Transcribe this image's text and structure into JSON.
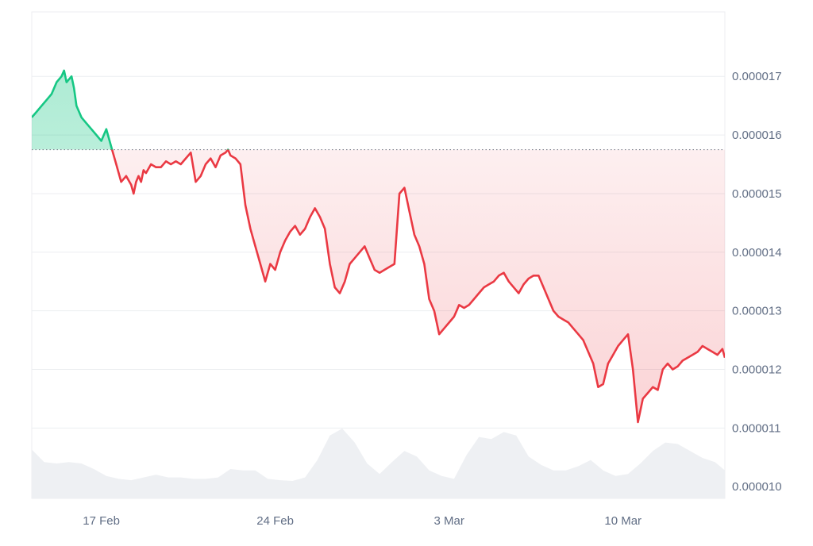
{
  "chart_data": {
    "type": "line",
    "title": "",
    "xlabel": "",
    "ylabel": "",
    "baseline": 1.575e-05,
    "ylim": [
      9.8e-06,
      1.81e-05
    ],
    "y_ticks": [
      "0.000017",
      "0.000016",
      "0.000015",
      "0.000014",
      "0.000013",
      "0.000012",
      "0.000011",
      "0.000010"
    ],
    "y_tick_values": [
      1.7e-05,
      1.6e-05,
      1.5e-05,
      1.4e-05,
      1.3e-05,
      1.2e-05,
      1.1e-05,
      1e-05
    ],
    "x_ticks": [
      "17 Feb",
      "24 Feb",
      "3 Mar",
      "10 Mar"
    ],
    "x_tick_days": [
      2.8,
      9.8,
      16.8,
      23.8
    ],
    "x_range_days": [
      0,
      27.9
    ],
    "grid": true,
    "colors": {
      "up": "#16c784",
      "down": "#ea3943",
      "up_fill": "#16c784",
      "down_fill": "#ea3943",
      "volume": "#eef0f3",
      "grid": "#eceef1",
      "baseline": "#7e8591",
      "tick_text": "#616e85"
    },
    "series": [
      {
        "days": [
          0.0,
          0.2,
          0.4,
          0.6,
          0.8,
          1.0,
          1.2,
          1.3,
          1.4,
          1.6,
          1.7,
          1.8,
          2.0,
          2.2,
          2.4,
          2.6,
          2.8,
          3.0,
          3.2,
          3.4,
          3.6,
          3.8,
          4.0,
          4.1,
          4.2,
          4.3,
          4.4,
          4.5,
          4.6,
          4.8,
          5.0,
          5.2,
          5.4,
          5.6,
          5.8,
          6.0,
          6.2,
          6.4,
          6.6,
          6.8,
          7.0,
          7.2,
          7.4,
          7.6,
          7.8,
          7.9,
          8.0,
          8.2,
          8.4,
          8.6,
          8.8,
          9.0,
          9.2,
          9.4,
          9.6,
          9.8,
          10.0,
          10.2,
          10.4,
          10.6,
          10.8,
          11.0,
          11.2,
          11.4,
          11.6,
          11.8,
          12.0,
          12.2,
          12.4,
          12.6,
          12.8,
          13.0,
          13.2,
          13.4,
          13.6,
          13.8,
          14.0,
          14.2,
          14.4,
          14.6,
          14.8,
          15.0,
          15.2,
          15.4,
          15.6,
          15.8,
          16.0,
          16.2,
          16.4,
          16.6,
          16.8,
          17.0,
          17.1,
          17.2,
          17.4,
          17.6,
          17.8,
          18.0,
          18.2,
          18.4,
          18.6,
          18.8,
          19.0,
          19.2,
          19.4,
          19.6,
          19.8,
          20.0,
          20.2,
          20.4,
          20.6,
          20.8,
          21.0,
          21.2,
          21.4,
          21.6,
          21.8,
          22.0,
          22.2,
          22.4,
          22.6,
          22.8,
          23.0,
          23.2,
          23.4,
          23.6,
          23.8,
          24.0,
          24.2,
          24.4,
          24.6,
          24.8,
          25.0,
          25.2,
          25.4,
          25.6,
          25.8,
          26.0,
          26.2,
          26.4,
          26.6,
          26.8,
          27.0,
          27.2,
          27.4,
          27.6,
          27.8,
          27.9
        ],
        "values": [
          1.63e-05,
          1.64e-05,
          1.65e-05,
          1.66e-05,
          1.67e-05,
          1.69e-05,
          1.7e-05,
          1.71e-05,
          1.69e-05,
          1.7e-05,
          1.68e-05,
          1.65e-05,
          1.63e-05,
          1.62e-05,
          1.61e-05,
          1.6e-05,
          1.59e-05,
          1.61e-05,
          1.58e-05,
          1.55e-05,
          1.52e-05,
          1.53e-05,
          1.515e-05,
          1.5e-05,
          1.52e-05,
          1.53e-05,
          1.52e-05,
          1.54e-05,
          1.535e-05,
          1.55e-05,
          1.545e-05,
          1.545e-05,
          1.555e-05,
          1.55e-05,
          1.555e-05,
          1.55e-05,
          1.56e-05,
          1.57e-05,
          1.52e-05,
          1.53e-05,
          1.55e-05,
          1.56e-05,
          1.545e-05,
          1.565e-05,
          1.57e-05,
          1.575e-05,
          1.565e-05,
          1.56e-05,
          1.55e-05,
          1.48e-05,
          1.44e-05,
          1.41e-05,
          1.38e-05,
          1.35e-05,
          1.38e-05,
          1.37e-05,
          1.4e-05,
          1.42e-05,
          1.435e-05,
          1.445e-05,
          1.43e-05,
          1.44e-05,
          1.46e-05,
          1.475e-05,
          1.46e-05,
          1.44e-05,
          1.38e-05,
          1.34e-05,
          1.33e-05,
          1.35e-05,
          1.38e-05,
          1.39e-05,
          1.4e-05,
          1.41e-05,
          1.39e-05,
          1.37e-05,
          1.365e-05,
          1.37e-05,
          1.375e-05,
          1.38e-05,
          1.5e-05,
          1.51e-05,
          1.47e-05,
          1.43e-05,
          1.41e-05,
          1.38e-05,
          1.32e-05,
          1.3e-05,
          1.26e-05,
          1.27e-05,
          1.28e-05,
          1.29e-05,
          1.3e-05,
          1.31e-05,
          1.305e-05,
          1.31e-05,
          1.32e-05,
          1.33e-05,
          1.34e-05,
          1.345e-05,
          1.35e-05,
          1.36e-05,
          1.365e-05,
          1.35e-05,
          1.34e-05,
          1.33e-05,
          1.345e-05,
          1.355e-05,
          1.36e-05,
          1.36e-05,
          1.34e-05,
          1.32e-05,
          1.3e-05,
          1.29e-05,
          1.285e-05,
          1.28e-05,
          1.27e-05,
          1.26e-05,
          1.25e-05,
          1.23e-05,
          1.21e-05,
          1.17e-05,
          1.175e-05,
          1.21e-05,
          1.225e-05,
          1.24e-05,
          1.25e-05,
          1.26e-05,
          1.2e-05,
          1.11e-05,
          1.15e-05,
          1.16e-05,
          1.17e-05,
          1.165e-05,
          1.2e-05,
          1.21e-05,
          1.2e-05,
          1.205e-05,
          1.215e-05,
          1.22e-05,
          1.225e-05,
          1.23e-05,
          1.24e-05,
          1.235e-05,
          1.23e-05,
          1.225e-05,
          1.235e-05,
          1.22e-05
        ]
      }
    ],
    "volume_days": [
      0.0,
      0.5,
      1.0,
      1.5,
      2.0,
      2.5,
      3.0,
      3.5,
      4.0,
      4.5,
      5.0,
      5.5,
      6.0,
      6.5,
      7.0,
      7.5,
      8.0,
      8.5,
      9.0,
      9.5,
      10.0,
      10.5,
      11.0,
      11.5,
      12.0,
      12.5,
      13.0,
      13.5,
      14.0,
      14.5,
      15.0,
      15.5,
      16.0,
      16.5,
      17.0,
      17.5,
      18.0,
      18.5,
      19.0,
      19.5,
      20.0,
      20.5,
      21.0,
      21.5,
      22.0,
      22.5,
      23.0,
      23.5,
      24.0,
      24.5,
      25.0,
      25.5,
      26.0,
      26.5,
      27.0,
      27.5,
      27.9
    ],
    "volume": [
      0.7,
      0.52,
      0.5,
      0.52,
      0.5,
      0.42,
      0.32,
      0.28,
      0.26,
      0.3,
      0.34,
      0.3,
      0.3,
      0.28,
      0.28,
      0.3,
      0.42,
      0.4,
      0.4,
      0.28,
      0.26,
      0.25,
      0.3,
      0.55,
      0.9,
      1.0,
      0.8,
      0.5,
      0.35,
      0.52,
      0.68,
      0.6,
      0.4,
      0.32,
      0.28,
      0.62,
      0.88,
      0.85,
      0.95,
      0.9,
      0.6,
      0.48,
      0.4,
      0.4,
      0.46,
      0.55,
      0.4,
      0.32,
      0.35,
      0.5,
      0.68,
      0.8,
      0.78,
      0.68,
      0.58,
      0.52,
      0.4
    ]
  }
}
